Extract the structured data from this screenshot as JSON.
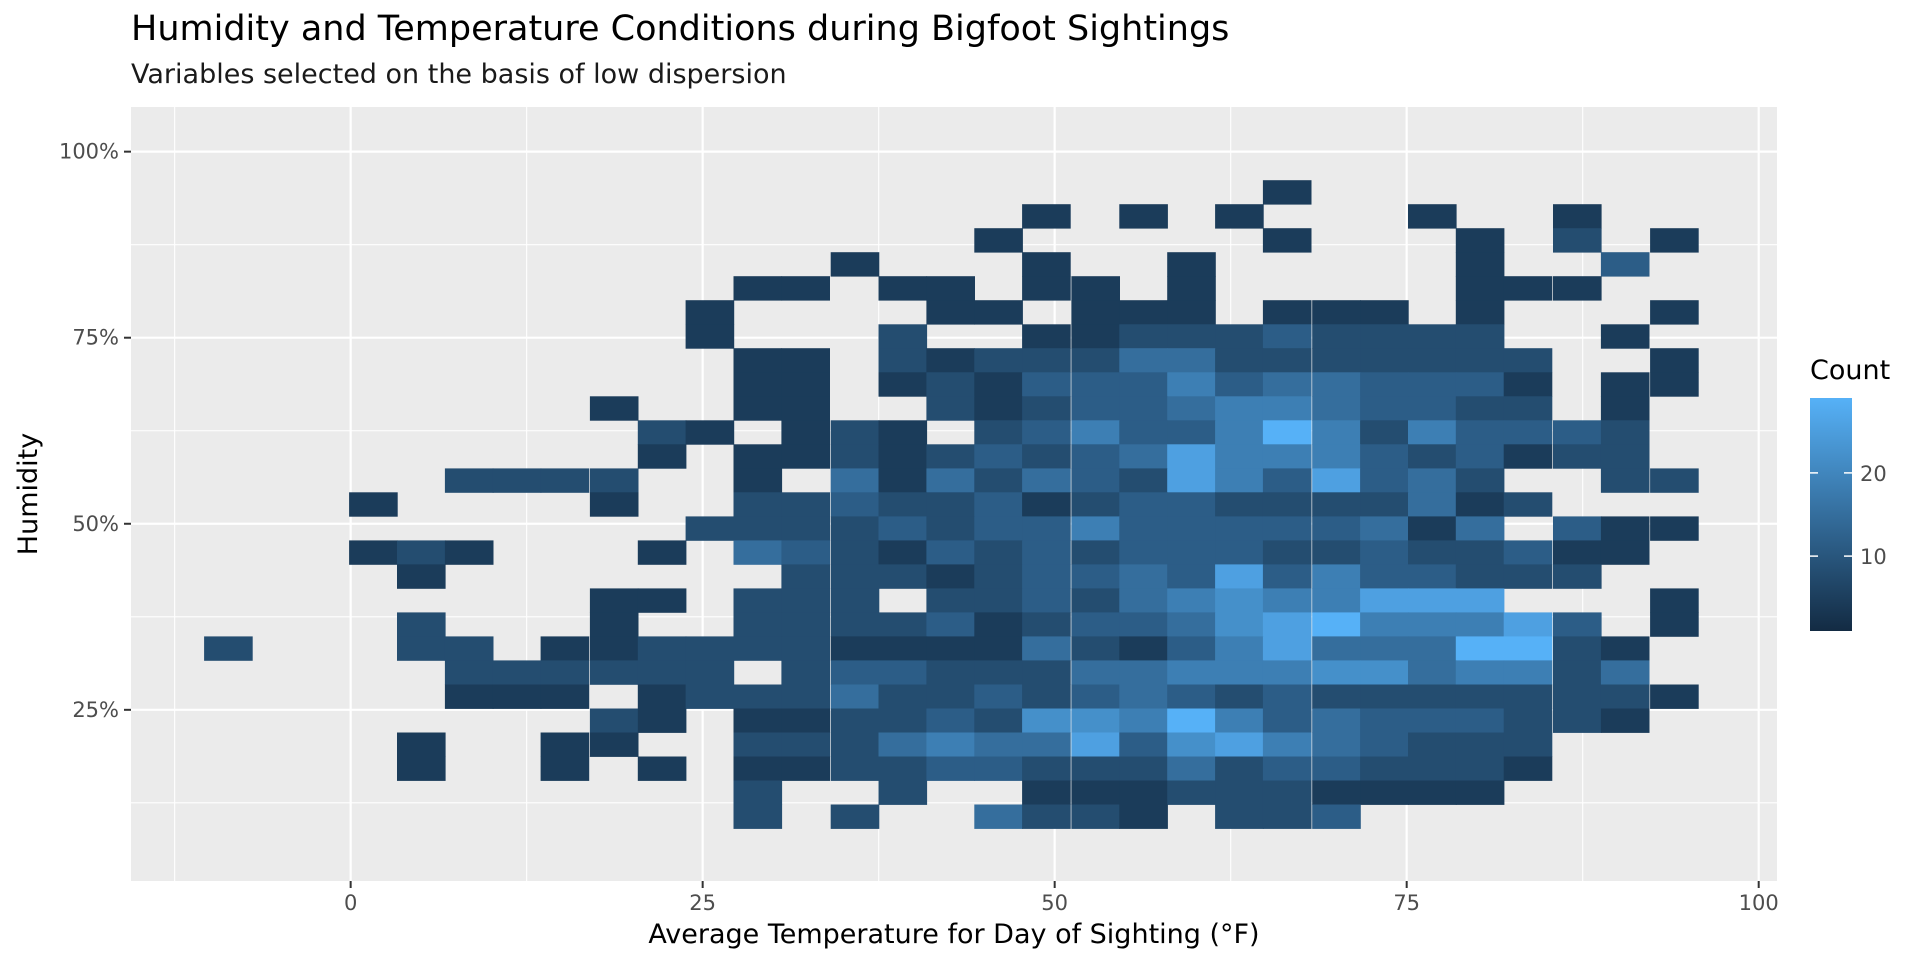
{
  "chart_data": {
    "type": "heatmap",
    "title": "Humidity and Temperature Conditions during Bigfoot Sightings",
    "subtitle": "Variables selected on the basis of low dispersion",
    "xlabel": "Average Temperature for Day of Sighting (°F)",
    "ylabel": "Humidity",
    "x_ticks": [
      0,
      25,
      50,
      75,
      100
    ],
    "y_ticks": [
      0.25,
      0.5,
      0.75,
      1.0
    ],
    "y_tick_labels": [
      "25%",
      "50%",
      "75%",
      "100%"
    ],
    "xlim": [
      -15.6,
      101.3
    ],
    "ylim": [
      0.02,
      1.06
    ],
    "bin_width_x": 3.42,
    "bin_height_y": 0.0323,
    "grid": true,
    "legend": {
      "title": "Count",
      "position": "right",
      "ticks": [
        10,
        20
      ],
      "range": [
        1,
        29
      ],
      "color_low": "#132B43",
      "color_high": "#56B1F7"
    },
    "x_bins": [
      -8.7,
      -1.9,
      1.6,
      5.0,
      8.4,
      11.8,
      15.2,
      18.7,
      22.1,
      25.5,
      28.9,
      32.3,
      35.8,
      39.2,
      42.6,
      46.0,
      49.4,
      52.9,
      56.3,
      59.7,
      63.1,
      66.5,
      70.0,
      73.4,
      76.8,
      80.2,
      83.6,
      87.1,
      90.5,
      94.0
    ],
    "y_bins": [
      0.1066,
      0.1389,
      0.1711,
      0.2034,
      0.2357,
      0.2679,
      0.3002,
      0.3325,
      0.3647,
      0.397,
      0.4293,
      0.4615,
      0.4938,
      0.5261,
      0.5583,
      0.5906,
      0.6229,
      0.6551,
      0.6874,
      0.7197,
      0.7519,
      0.7842,
      0.8165,
      0.8487,
      0.881,
      0.9133,
      0.9455,
      0.9778,
      1.0101
    ],
    "rows": [
      "..............................",
      "..............................",
      ".....................1........",
      "................1.1.1...1..1..",
      "...............1.....1...1.2.1",
      "............1...1..1.....1..3.",
      "..........11.11.11.1.....111..",
      ".........1....11.111.111.1...1",
      ".........1...2..1122232222..1.",
      "..........11.21222442222222..1",
      "..........11.12133353443331.11",
      ".......1..11..2123345543322.1.",
      "........21.121.23533585253332.",
      "........1.1121232347555323122.",
      "....2222..1.41424327537342..22",
      "..1....1..22322312332222412...",
      ".........22223233533333414.311",
      "..121...1.4321323233322322311.",
      "...1.......22212334373533222..",
      ".......11.222.223245655777...1",
      "...2...1..222231233467855573.1",
      "2..22.11222211114213574448821.",
      "....222222.233222445556645524.",
      "....111.1222422323432322222221",
      ".......21.1122326658534333221.",
      "...1..11..22245447367543222...",
      "...1..1.1.11223322242332221...",
      "..........2..2..1112221111....",
      "..........2.2..4221.223......."
    ]
  }
}
